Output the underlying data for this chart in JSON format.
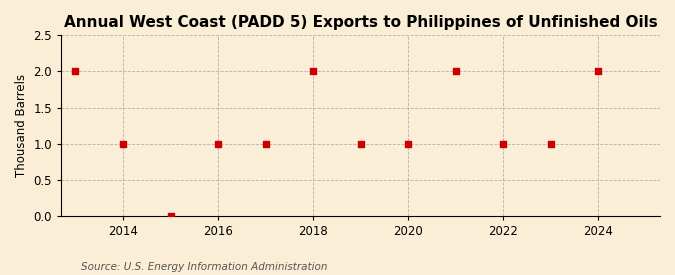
{
  "title": "Annual West Coast (PADD 5) Exports to Philippines of Unfinished Oils",
  "ylabel": "Thousand Barrels",
  "source": "Source: U.S. Energy Information Administration",
  "years": [
    2013,
    2014,
    2015,
    2016,
    2017,
    2018,
    2019,
    2020,
    2021,
    2022,
    2023,
    2024
  ],
  "values": [
    2.0,
    1.0,
    0.0,
    1.0,
    1.0,
    2.0,
    1.0,
    1.0,
    2.0,
    1.0,
    1.0,
    2.0
  ],
  "ylim": [
    0.0,
    2.5
  ],
  "yticks": [
    0.0,
    0.5,
    1.0,
    1.5,
    2.0,
    2.5
  ],
  "xticks": [
    2014,
    2016,
    2018,
    2020,
    2022,
    2024
  ],
  "xlim": [
    2012.7,
    2025.3
  ],
  "marker_color": "#cc0000",
  "marker_size": 4,
  "grid_color": "#aaaaaa",
  "bg_color": "#faefd6",
  "title_fontsize": 11,
  "label_fontsize": 8.5,
  "tick_fontsize": 8.5,
  "source_fontsize": 7.5
}
